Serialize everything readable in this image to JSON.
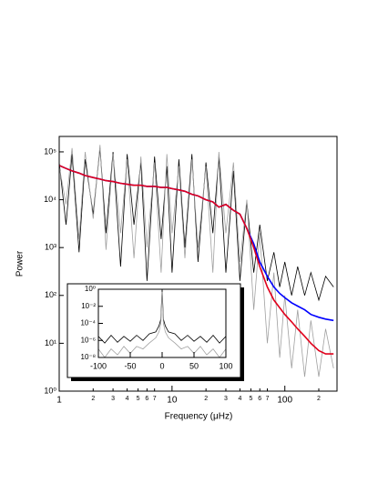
{
  "chart_data": [
    {
      "type": "line",
      "xlabel": "Frequency (μHz)",
      "ylabel": "Power",
      "xscale": "log",
      "yscale": "log",
      "xlim": [
        1,
        290
      ],
      "ylim": [
        1,
        210000
      ],
      "xticks": [
        1,
        2,
        3,
        4,
        5,
        6,
        7,
        10,
        {
          "value": 20,
          "label": "2"
        },
        {
          "value": 30,
          "label": "3"
        },
        {
          "value": 40,
          "label": "4"
        },
        {
          "value": 50,
          "label": "5"
        },
        {
          "value": 60,
          "label": "6"
        },
        {
          "value": 70,
          "label": "7"
        },
        100,
        {
          "value": 200,
          "label": "2"
        }
      ],
      "yticks": [
        {
          "value": 1,
          "label": "10⁰"
        },
        {
          "value": 10,
          "label": "10¹"
        },
        {
          "value": 100,
          "label": "10²"
        },
        {
          "value": 1000,
          "label": "10³"
        },
        {
          "value": 10000,
          "label": "10⁴"
        },
        {
          "value": 100000,
          "label": "10⁵"
        }
      ],
      "x": [
        1,
        1.15,
        1.3,
        1.5,
        1.7,
        2,
        2.3,
        2.6,
        3,
        3.5,
        4,
        4.6,
        5.3,
        6,
        7,
        8,
        9,
        10,
        11.5,
        13,
        15,
        17,
        20,
        23,
        26,
        30,
        35,
        40,
        46,
        53,
        60,
        70,
        80,
        90,
        100,
        115,
        130,
        150,
        170,
        200,
        230,
        270
      ],
      "series": [
        {
          "color": "#000000",
          "values": [
            60000,
            3000,
            90000,
            800,
            70000,
            5000,
            120000,
            2000,
            100000,
            400,
            90000,
            3000,
            60000,
            200,
            80000,
            1500,
            50000,
            300,
            70000,
            1000,
            90000,
            500,
            60000,
            2000,
            80000,
            300,
            40000,
            200,
            9000,
            300,
            3000,
            200,
            800,
            150,
            500,
            100,
            400,
            100,
            300,
            80,
            250,
            150
          ]
        },
        {
          "color": "#a0a0a0",
          "values": [
            50000,
            8000,
            120000,
            1500,
            100000,
            4000,
            140000,
            900,
            90000,
            2000,
            70000,
            600,
            80000,
            1000,
            60000,
            300,
            90000,
            2000,
            50000,
            600,
            70000,
            1000,
            50000,
            300,
            100000,
            2000,
            60000,
            500,
            10000,
            50,
            2000,
            10,
            300,
            5,
            100,
            3,
            50,
            2,
            30,
            2,
            20,
            3
          ]
        },
        {
          "color": "#0000ff",
          "values": [
            52000,
            45000,
            40000,
            36000,
            32000,
            29000,
            27000,
            25000,
            24000,
            22000,
            21000,
            20000,
            20000,
            19000,
            19000,
            18000,
            18000,
            17000,
            16000,
            15000,
            13000,
            12000,
            10000,
            9000,
            7000,
            8000,
            6000,
            5000,
            2500,
            1200,
            500,
            250,
            150,
            110,
            90,
            70,
            60,
            50,
            40,
            35,
            32,
            30
          ]
        },
        {
          "color": "#e0001b",
          "values": [
            52000,
            45000,
            40000,
            36000,
            32000,
            29000,
            27000,
            25000,
            24000,
            22000,
            21000,
            20000,
            20000,
            19000,
            19000,
            18000,
            18000,
            17000,
            16000,
            15000,
            13000,
            12000,
            10000,
            9000,
            7000,
            8000,
            6000,
            5000,
            2500,
            1000,
            400,
            150,
            80,
            55,
            40,
            28,
            20,
            14,
            10,
            7,
            6,
            6
          ]
        }
      ]
    },
    {
      "type": "line",
      "xscale": "linear",
      "yscale": "log",
      "xlim": [
        -100,
        100
      ],
      "ylim": [
        1e-08,
        1
      ],
      "xticks": [
        -100,
        -50,
        0,
        50,
        100
      ],
      "yticks": [
        {
          "value": 1,
          "label": "10⁰"
        },
        {
          "value": 0.01,
          "label": "10⁻²"
        },
        {
          "value": 0.0001,
          "label": "10⁻⁴"
        },
        {
          "value": 1e-06,
          "label": "10⁻⁶"
        },
        {
          "value": 1e-08,
          "label": "10⁻⁸"
        }
      ],
      "x": [
        -100,
        -90,
        -80,
        -70,
        -60,
        -50,
        -40,
        -30,
        -20,
        -10,
        -5,
        -2,
        0,
        2,
        5,
        10,
        20,
        30,
        40,
        50,
        60,
        70,
        80,
        90,
        100
      ],
      "series": [
        {
          "color": "#000000",
          "values": [
            3e-06,
            5e-07,
            4e-06,
            6e-07,
            3e-06,
            8e-07,
            4e-06,
            1e-06,
            6e-06,
            1e-05,
            5e-05,
            0.0003,
            1,
            0.0003,
            5e-05,
            1e-05,
            6e-06,
            1e-06,
            4e-06,
            8e-07,
            3e-06,
            6e-07,
            4e-06,
            5e-07,
            3e-06
          ]
        },
        {
          "color": "#a0a0a0",
          "values": [
            1e-07,
            1e-08,
            1e-07,
            2e-08,
            2e-07,
            3e-08,
            2e-07,
            1e-07,
            5e-07,
            2e-06,
            1e-05,
            0.0001,
            0.5,
            0.0001,
            1e-05,
            2e-06,
            5e-07,
            1e-07,
            2e-07,
            3e-08,
            2e-07,
            2e-08,
            1e-07,
            1e-08,
            1e-07
          ]
        }
      ]
    }
  ]
}
